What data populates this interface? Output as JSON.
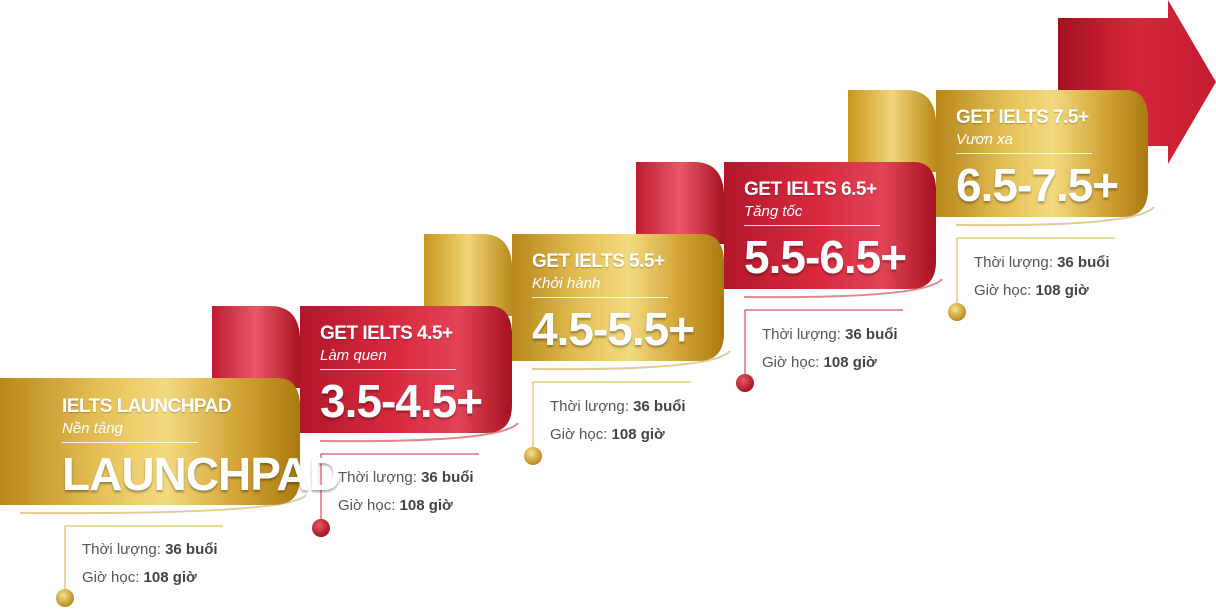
{
  "colors": {
    "gold": "#d4a52e",
    "gold_dark": "#a97a10",
    "red": "#d8293d",
    "red_dark": "#a5121f",
    "text_gray": "#555555"
  },
  "steps": [
    {
      "heading": "IELTS LAUNCHPAD",
      "subtitle": "Nền tảng",
      "band": "LAUNCHPAD",
      "color": "gold",
      "duration_label": "Thời lượng:",
      "duration_value": "36 buổi",
      "hours_label": "Giờ học:",
      "hours_value": "108 giờ"
    },
    {
      "heading": "GET IELTS 4.5+",
      "subtitle": "Làm quen",
      "band": "3.5-4.5+",
      "color": "red",
      "duration_label": "Thời lượng:",
      "duration_value": "36 buổi",
      "hours_label": "Giờ học:",
      "hours_value": "108 giờ"
    },
    {
      "heading": "GET IELTS 5.5+",
      "subtitle": "Khởi hành",
      "band": "4.5-5.5+",
      "color": "gold",
      "duration_label": "Thời lượng:",
      "duration_value": "36 buổi",
      "hours_label": "Giờ học:",
      "hours_value": "108 giờ"
    },
    {
      "heading": "GET IELTS 6.5+",
      "subtitle": "Tăng tốc",
      "band": "5.5-6.5+",
      "color": "red",
      "duration_label": "Thời lượng:",
      "duration_value": "36 buổi",
      "hours_label": "Giờ học:",
      "hours_value": "108 giờ"
    },
    {
      "heading": "GET IELTS 7.5+",
      "subtitle": "Vươn xa",
      "band": "6.5-7.5+",
      "color": "gold",
      "duration_label": "Thời lượng:",
      "duration_value": "36 buổi",
      "hours_label": "Giờ học:",
      "hours_value": "108 giờ"
    }
  ]
}
